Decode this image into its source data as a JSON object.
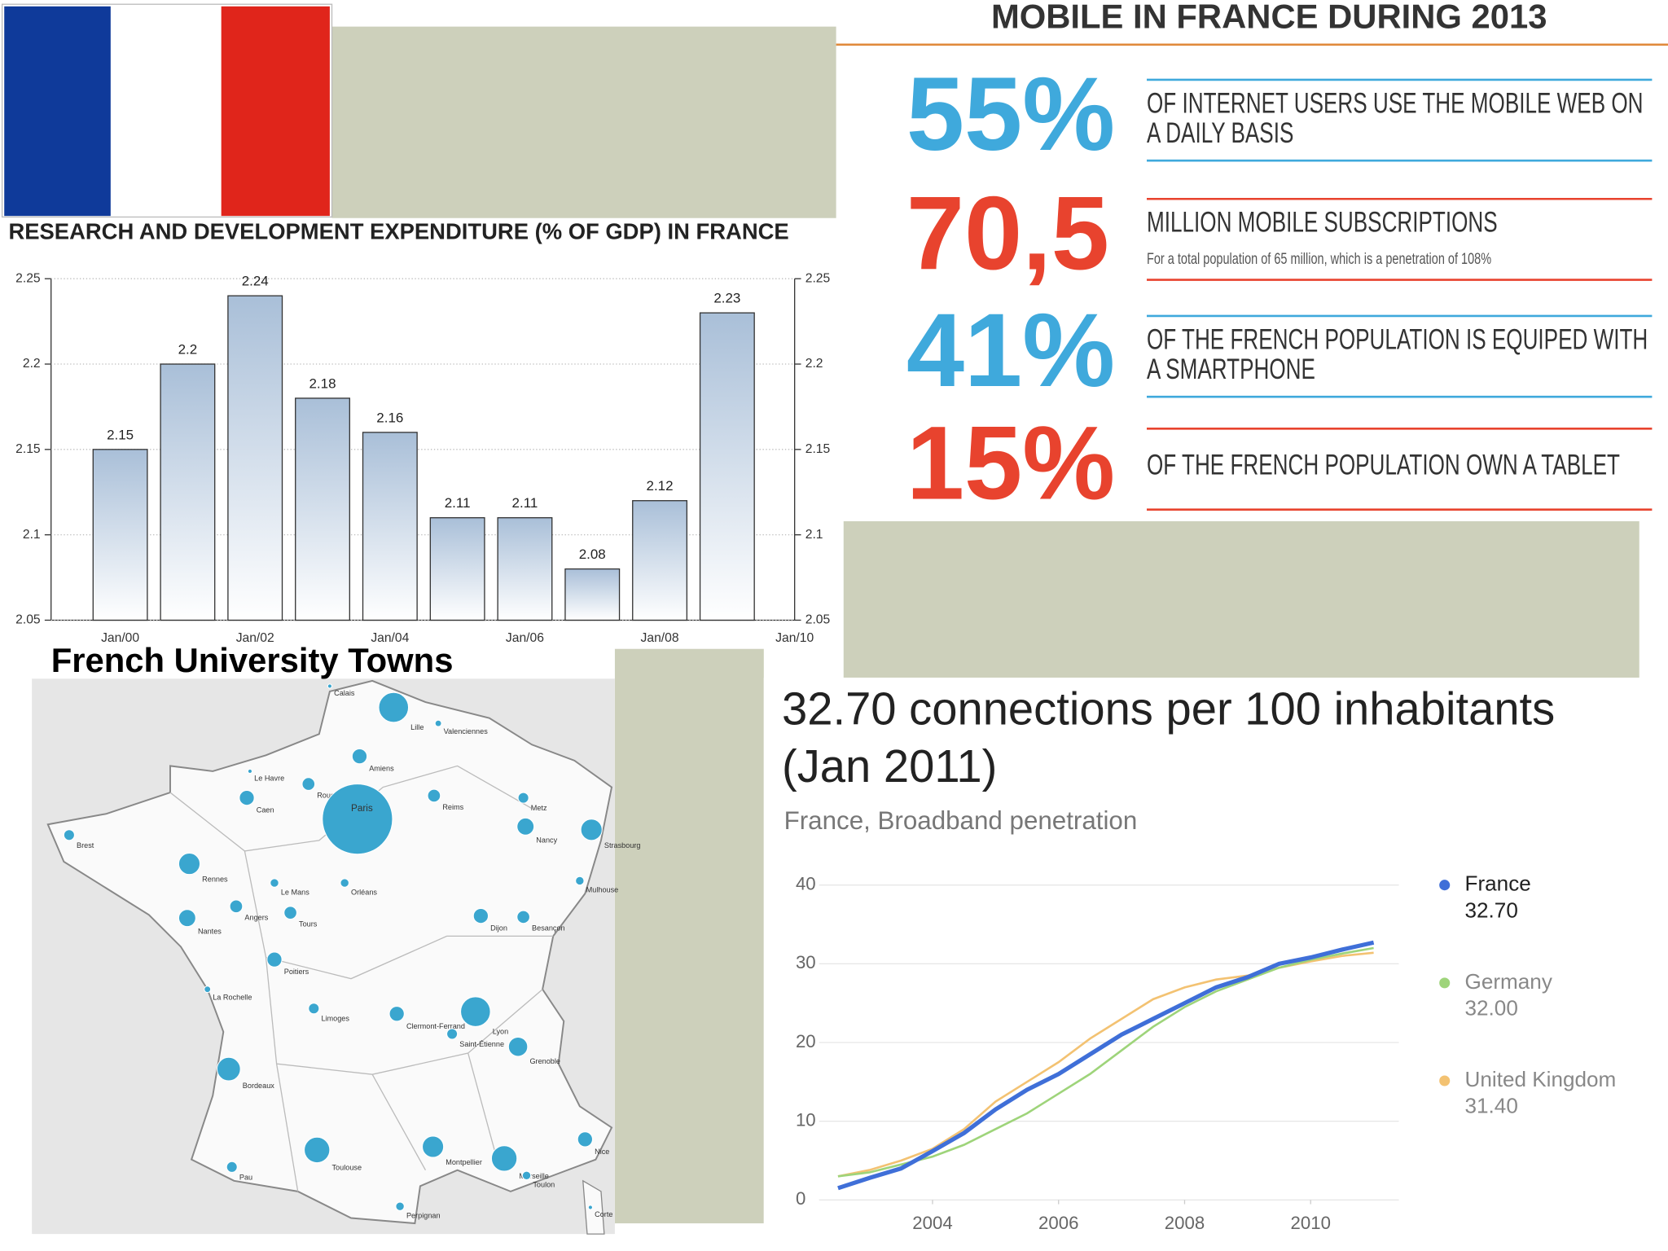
{
  "chart_data": [
    {
      "type": "bar",
      "title": "RESEARCH AND DEVELOPMENT EXPENDITURE (% OF GDP) IN FRANCE",
      "categories": [
        "Jan/00",
        null,
        "Jan/02",
        null,
        "Jan/04",
        null,
        "Jan/06",
        null,
        "Jan/08",
        null,
        "Jan/10"
      ],
      "values": [
        2.15,
        2.2,
        2.24,
        2.18,
        2.16,
        2.11,
        2.11,
        2.08,
        2.12,
        2.23,
        null
      ],
      "color": "#a9bfd8",
      "ylim": [
        2.05,
        2.25
      ],
      "yticks": [
        2.05,
        2.1,
        2.15,
        2.2,
        2.25
      ],
      "grid": true
    },
    {
      "type": "line",
      "title": "32.70 connections per 100 inhabitants (Jan 2011)",
      "subtitle": "France, Broadband penetration",
      "x": [
        2002.5,
        2003,
        2003.5,
        2004,
        2004.5,
        2005,
        2005.5,
        2006,
        2006.5,
        2007,
        2007.5,
        2008,
        2008.5,
        2009,
        2009.5,
        2010,
        2010.5,
        2011
      ],
      "series": [
        {
          "name": "France",
          "color": "#3f6fd8",
          "values": [
            1.5,
            2.8,
            4,
            6.2,
            8.5,
            11.5,
            14,
            16,
            18.5,
            21,
            23,
            25,
            27,
            28.3,
            30,
            30.8,
            31.8,
            32.7
          ],
          "value_labels": [
            null,
            null,
            null,
            null,
            null,
            null,
            null,
            null,
            null,
            null,
            null,
            null,
            null,
            null,
            null,
            null,
            null,
            "32.70"
          ]
        },
        {
          "name": "Germany",
          "color": "#9ed47a",
          "values": [
            3,
            3.5,
            4.5,
            5.5,
            7,
            9,
            11,
            13.5,
            16,
            19,
            22,
            24.5,
            26.5,
            28,
            29.5,
            30.5,
            31.3,
            32
          ],
          "value_labels": [
            null,
            null,
            null,
            null,
            null,
            null,
            null,
            null,
            null,
            null,
            null,
            null,
            null,
            null,
            null,
            null,
            null,
            "32.00"
          ]
        },
        {
          "name": "United Kingdom",
          "color": "#f3c272",
          "values": [
            3,
            3.8,
            5,
            6.5,
            9,
            12.5,
            15,
            17.5,
            20.5,
            23,
            25.5,
            27,
            28,
            28.5,
            29.5,
            30.3,
            31,
            31.4
          ],
          "value_labels": [
            null,
            null,
            null,
            null,
            null,
            null,
            null,
            null,
            null,
            null,
            null,
            null,
            null,
            null,
            null,
            null,
            null,
            "31.40"
          ]
        }
      ],
      "xlim": [
        2002.2,
        2011.4
      ],
      "xticks": [
        2004,
        2006,
        2008,
        2010
      ],
      "ylim": [
        0,
        40
      ],
      "yticks": [
        0,
        10,
        20,
        30,
        40
      ]
    }
  ],
  "infographic": {
    "title": "MOBILE IN FRANCE DURING 2013",
    "items": [
      {
        "figure": "55%",
        "text": "OF INTERNET USERS USE THE MOBILE WEB ON A DAILY BASIS",
        "color": "#3fa9dc"
      },
      {
        "figure": "70,5",
        "text": "MILLION MOBILE SUBSCRIPTIONS",
        "note": "For a total population of 65 million, which is a penetration of 108%",
        "color": "#e8432e"
      },
      {
        "figure": "41%",
        "text": "OF THE FRENCH POPULATION IS EQUIPED WITH A SMARTPHONE",
        "color": "#3fa9dc"
      },
      {
        "figure": "15%",
        "text": "OF THE FRENCH POPULATION OWN A TABLET",
        "color": "#e8432e"
      }
    ]
  },
  "map": {
    "title": "French University Towns",
    "towns": [
      "Lille",
      "Calais",
      "Valenciennes",
      "Amiens",
      "Le Havre",
      "Caen",
      "Rouen",
      "Reims",
      "Metz",
      "Strasbourg",
      "Nancy",
      "Paris",
      "Brest",
      "Rennes",
      "Le Mans",
      "Orléans",
      "Tours",
      "Angers",
      "Nantes",
      "Dijon",
      "Besançon",
      "Mulhouse",
      "Poitiers",
      "Limoges",
      "Clermont-Ferrand",
      "Lyon",
      "Saint-Étienne",
      "Grenoble",
      "Bordeaux",
      "Toulouse",
      "Montpellier",
      "Marseille",
      "Nice",
      "Pau",
      "Perpignan",
      "La Rochelle",
      "Toulon",
      "Corte"
    ]
  }
}
